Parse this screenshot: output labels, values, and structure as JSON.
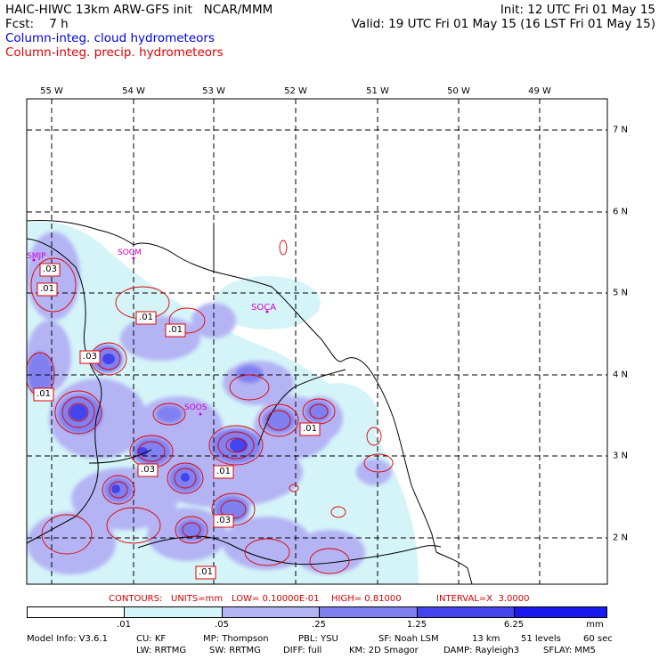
{
  "header": {
    "line1_left": "HAIC-HIWC 13km ARW-GFS init   NCAR/MMM",
    "line1_right": "Init: 12 UTC Fri 01 May 15",
    "line2_left": "Fcst:    7 h",
    "line2_right": "Valid: 19 UTC Fri 01 May 15 (16 LST Fri 01 May 15)",
    "legend_cloud": "Column-integ. cloud hydrometeors",
    "legend_precip": "Column-integ. precip. hydrometeors"
  },
  "colors": {
    "cloud_text": "#0000e0",
    "precip_text": "#e00000",
    "shade_1": "#d4f4f8",
    "shade_2": "#b4b4f4",
    "shade_3": "#8080f0",
    "shade_4": "#4444ee",
    "shade_5": "#1a1aee",
    "contour": "#e00000",
    "station": "#d000d0"
  },
  "map": {
    "lon_labels": [
      "55 W",
      "54 W",
      "53 W",
      "52 W",
      "51 W",
      "50 W",
      "49 W"
    ],
    "lat_labels": [
      "7 N",
      "6 N",
      "5 N",
      "4 N",
      "3 N",
      "2 N"
    ],
    "stations": [
      "SMJP",
      "SOCA",
      "SOCM",
      "SOOS"
    ],
    "contour_labels": [
      ".03",
      ".01",
      ".01",
      ".01",
      ".03",
      ".01",
      ".01",
      ".03",
      ".01",
      ".03",
      ".01"
    ]
  },
  "contour_info": {
    "contours": "CONTOURS:",
    "units": "UNITS=mm",
    "low": "LOW= 0.10000E-01",
    "high": "HIGH= 0.81000",
    "interval": "INTERVAL=X  3.0000"
  },
  "colorbar": {
    "ticks": [
      ".01",
      ".05",
      ".25",
      "1.25",
      "6.25"
    ],
    "unit": "mm"
  },
  "model_info": {
    "line1": [
      "Model Info: V3.6.1",
      "CU: KF",
      "MP: Thompson",
      "PBL: YSU",
      "SF: Noah LSM",
      "13 km",
      "51 levels",
      "60 sec"
    ],
    "line2": [
      "LW: RRTMG",
      "SW: RRTMG",
      "DIFF: full",
      "KM: 2D Smagor",
      "DAMP: Rayleigh3",
      "SFLAY: MM5"
    ]
  }
}
